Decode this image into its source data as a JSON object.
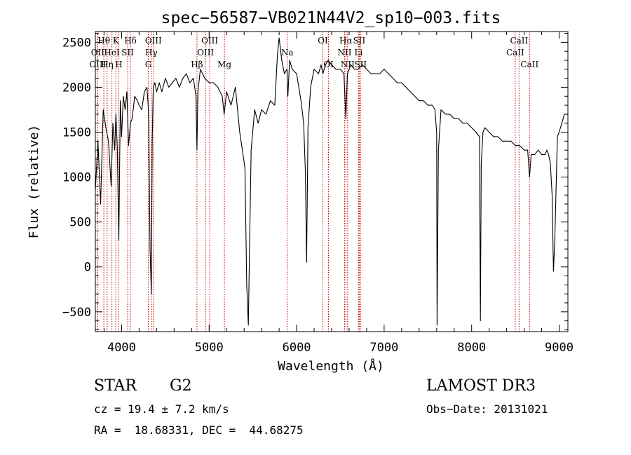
{
  "chart_data": {
    "type": "line",
    "title": "spec−56587−VB021N44V2_sp10−003.fits",
    "xlabel": "Wavelength (Å)",
    "ylabel": "Flux (relative)",
    "xlim": [
      3700,
      9100
    ],
    "ylim": [
      -720,
      2620
    ],
    "xticks": [
      4000,
      5000,
      6000,
      7000,
      8000,
      9000
    ],
    "xtick_labels": [
      "4000",
      "5000",
      "6000",
      "7000",
      "8000",
      "9000"
    ],
    "yticks": [
      -500,
      0,
      500,
      1000,
      1500,
      2000,
      2500
    ],
    "ytick_labels": [
      "−500",
      "0",
      "500",
      "1000",
      "1500",
      "2000",
      "2500"
    ],
    "series": [
      {
        "name": "flux",
        "color": "#000000",
        "x": [
          3700,
          3730,
          3760,
          3790,
          3820,
          3850,
          3880,
          3900,
          3920,
          3935,
          3950,
          3968,
          3985,
          4000,
          4020,
          4040,
          4060,
          4080,
          4101,
          4120,
          4150,
          4180,
          4200,
          4230,
          4260,
          4290,
          4310,
          4325,
          4340,
          4350,
          4362,
          4380,
          4400,
          4430,
          4460,
          4500,
          4540,
          4580,
          4620,
          4660,
          4700,
          4740,
          4780,
          4820,
          4850,
          4861,
          4872,
          4900,
          4950,
          5000,
          5050,
          5100,
          5150,
          5172,
          5200,
          5250,
          5300,
          5350,
          5380,
          5410,
          5430,
          5448,
          5460,
          5480,
          5520,
          5560,
          5600,
          5650,
          5700,
          5750,
          5780,
          5800,
          5830,
          5860,
          5890,
          5900,
          5920,
          5950,
          6000,
          6050,
          6080,
          6100,
          6114,
          6130,
          6160,
          6200,
          6250,
          6280,
          6300,
          6330,
          6360,
          6400,
          6450,
          6500,
          6540,
          6563,
          6580,
          6620,
          6660,
          6700,
          6750,
          6800,
          6850,
          6900,
          6950,
          7000,
          7050,
          7100,
          7150,
          7200,
          7250,
          7300,
          7350,
          7400,
          7450,
          7500,
          7550,
          7580,
          7600,
          7605,
          7620,
          7650,
          7700,
          7750,
          7800,
          7850,
          7900,
          7950,
          8000,
          8050,
          8090,
          8100,
          8110,
          8130,
          8150,
          8200,
          8250,
          8300,
          8350,
          8400,
          8450,
          8500,
          8550,
          8600,
          8640,
          8662,
          8680,
          8720,
          8760,
          8800,
          8840,
          8860,
          8880,
          8900,
          8920,
          8935,
          8950,
          8980,
          9000,
          9030,
          9060,
          9100
        ],
        "values": [
          850,
          1400,
          700,
          1750,
          1550,
          1400,
          900,
          1600,
          1300,
          1700,
          1350,
          300,
          1850,
          1450,
          1900,
          1750,
          1950,
          1350,
          1600,
          1650,
          1900,
          1850,
          1800,
          1750,
          1950,
          2000,
          1700,
          200,
          -300,
          1400,
          2000,
          2050,
          1950,
          2050,
          1950,
          2100,
          2000,
          2050,
          2100,
          2000,
          2100,
          2150,
          2050,
          2100,
          1900,
          1300,
          1950,
          2200,
          2100,
          2050,
          2050,
          2000,
          1900,
          1700,
          1950,
          1800,
          2000,
          1500,
          1300,
          1100,
          -200,
          -650,
          100,
          1300,
          1750,
          1600,
          1750,
          1700,
          1850,
          1800,
          2350,
          2550,
          2300,
          2150,
          2200,
          1900,
          2300,
          2200,
          2150,
          1850,
          1600,
          1050,
          50,
          1550,
          2000,
          2200,
          2150,
          2250,
          2150,
          2250,
          2300,
          2250,
          2200,
          2200,
          2150,
          1650,
          2150,
          2250,
          2200,
          2200,
          2250,
          2200,
          2150,
          2150,
          2150,
          2200,
          2150,
          2100,
          2050,
          2050,
          2000,
          1950,
          1900,
          1850,
          1850,
          1800,
          1800,
          1750,
          1500,
          -650,
          1300,
          1750,
          1700,
          1700,
          1650,
          1650,
          1600,
          1600,
          1550,
          1500,
          1450,
          -600,
          1150,
          1500,
          1550,
          1500,
          1450,
          1450,
          1400,
          1400,
          1400,
          1350,
          1350,
          1300,
          1300,
          1000,
          1250,
          1250,
          1300,
          1250,
          1250,
          1300,
          1250,
          1150,
          800,
          -50,
          300,
          1450,
          1500,
          1600,
          1700,
          1700
        ]
      }
    ],
    "line_labels": [
      {
        "text": "Hθ",
        "x": 3797,
        "row": 0,
        "label_offset": 0
      },
      {
        "text": "OII",
        "x": 3727,
        "row": 1,
        "label_offset": 0
      },
      {
        "text": "OIII",
        "x": 3727,
        "row": 2,
        "label_offset": 0
      },
      {
        "text": "K",
        "x": 3934,
        "row": 0,
        "label_offset": 0
      },
      {
        "text": "HeI",
        "x": 3889,
        "row": 1,
        "label_offset": 0
      },
      {
        "text": "Hη",
        "x": 3835,
        "row": 2,
        "label_offset": 0
      },
      {
        "text": "SII",
        "x": 4069,
        "row": 1,
        "label_offset": 0
      },
      {
        "text": "Hδ",
        "x": 4101,
        "row": 0,
        "label_offset": 0
      },
      {
        "text": "H",
        "x": 3968,
        "row": 2,
        "label_offset": 0
      },
      {
        "text": "OIII",
        "x": 4363,
        "row": 0,
        "label_offset": 0
      },
      {
        "text": "Hγ",
        "x": 4340,
        "row": 1,
        "label_offset": 0
      },
      {
        "text": "G",
        "x": 4305,
        "row": 2,
        "label_offset": 0
      },
      {
        "text": "Hβ",
        "x": 4861,
        "row": 2,
        "label_offset": 0
      },
      {
        "text": "OIII",
        "x": 5007,
        "row": 0,
        "label_offset": 0
      },
      {
        "text": "OIII",
        "x": 4959,
        "row": 1,
        "label_offset": 0
      },
      {
        "text": "Mg",
        "x": 5175,
        "row": 2,
        "label_offset": 0
      },
      {
        "text": "Na",
        "x": 5893,
        "row": 1,
        "label_offset": 0
      },
      {
        "text": "OI",
        "x": 6300,
        "row": 0,
        "label_offset": 0
      },
      {
        "text": "OI",
        "x": 6364,
        "row": 2,
        "label_offset": 0
      },
      {
        "text": "Hα",
        "x": 6563,
        "row": 0,
        "label_offset": 0
      },
      {
        "text": "SII",
        "x": 6716,
        "row": 0,
        "label_offset": 0
      },
      {
        "text": "NII",
        "x": 6548,
        "row": 1,
        "label_offset": 0
      },
      {
        "text": "Li",
        "x": 6708,
        "row": 1,
        "label_offset": 0
      },
      {
        "text": "NII",
        "x": 6583,
        "row": 2,
        "label_offset": 0
      },
      {
        "text": "SII",
        "x": 6731,
        "row": 2,
        "label_offset": 0
      },
      {
        "text": "CaII",
        "x": 8542,
        "row": 0,
        "label_offset": 0
      },
      {
        "text": "CaII",
        "x": 8498,
        "row": 1,
        "label_offset": 0
      },
      {
        "text": "CaII",
        "x": 8662,
        "row": 2,
        "label_offset": 0
      }
    ],
    "line_marker_color": "#cc0000"
  },
  "info": {
    "object_type": "STAR",
    "subclass": "G2",
    "survey": "LAMOST DR3",
    "redshift": "cz = 19.4 ± 7.2 km/s",
    "obs_date": "Obs−Date: 20131021",
    "coords": "RA =  18.68331, DEC =  44.68275"
  }
}
